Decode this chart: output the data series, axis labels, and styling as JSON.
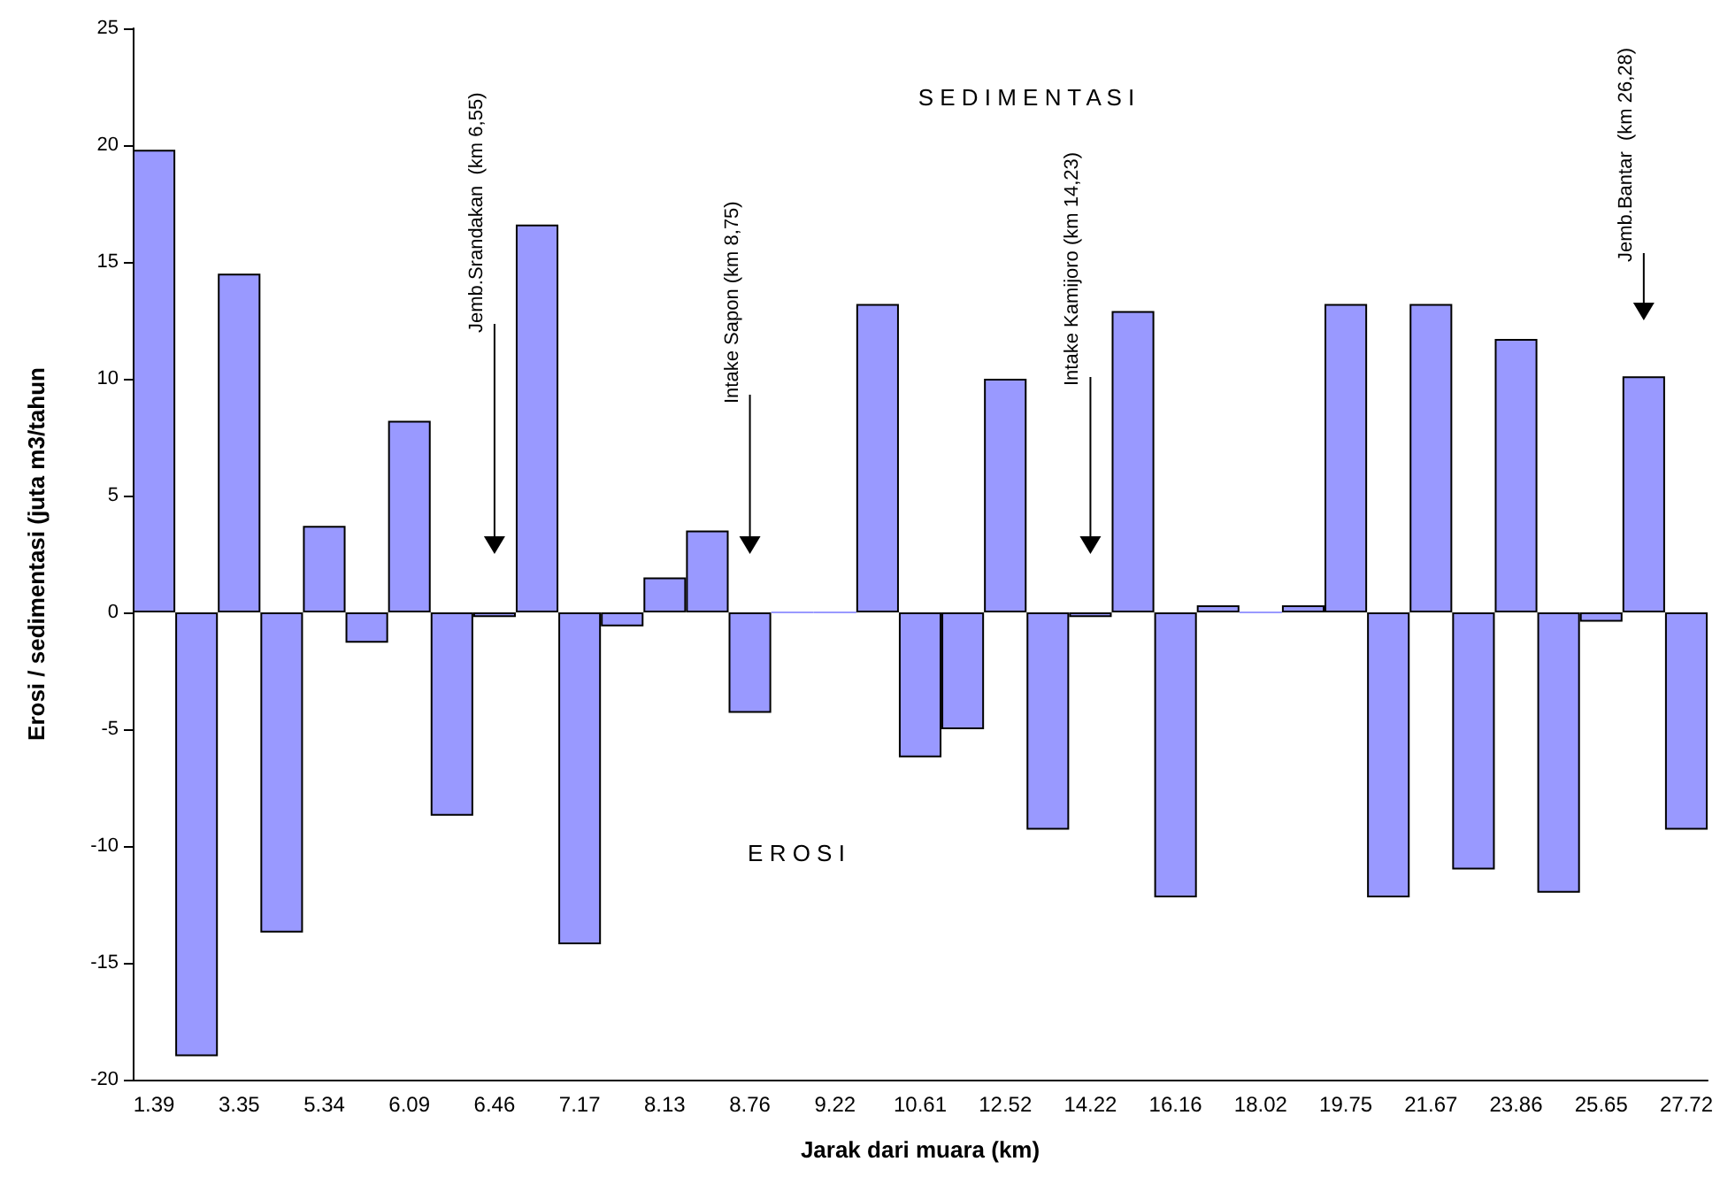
{
  "chart_data": {
    "type": "bar",
    "xlabel": "Jarak dari muara (km)",
    "ylabel": "Erosi / sedimentasi (juta m3/tahun",
    "categories": [
      "1.39",
      null,
      "3.35",
      null,
      "5.34",
      null,
      "6.09",
      null,
      "6.46",
      null,
      "7.17",
      null,
      "8.13",
      null,
      "8.76",
      null,
      "9.22",
      null,
      "10.61",
      null,
      "12.52",
      null,
      "14.22",
      null,
      "16.16",
      null,
      "18.02",
      null,
      "19.75",
      null,
      "21.67",
      null,
      "23.86",
      null,
      "25.65",
      null,
      "27.72"
    ],
    "values": [
      19.8,
      -19.0,
      14.5,
      -13.7,
      3.7,
      -1.3,
      8.2,
      -8.7,
      -0.2,
      16.6,
      -14.2,
      -0.6,
      1.5,
      3.5,
      -4.3,
      0,
      0,
      13.2,
      -6.2,
      -5.0,
      10.0,
      -9.3,
      -0.2,
      12.9,
      -12.2,
      0.3,
      0,
      0.3,
      13.2,
      -12.2,
      13.2,
      -11.0,
      11.7,
      -12.0,
      -0.4,
      10.1,
      -9.3
    ],
    "color": "#9999ff",
    "ylim": [
      -20,
      25
    ],
    "yticks": [
      -20,
      -15,
      -10,
      -5,
      0,
      5,
      10,
      15,
      20,
      25
    ],
    "grid": false,
    "annotations": [
      "S E D I M E N T A S I",
      "E R O S I",
      "Jemb.Srandakan  (km 6,55)",
      "Intake Sapon (km 8,75)",
      "Intake Kamijoro (km 14,23)",
      "Jemb.Bantar  (km 26,28)"
    ]
  }
}
